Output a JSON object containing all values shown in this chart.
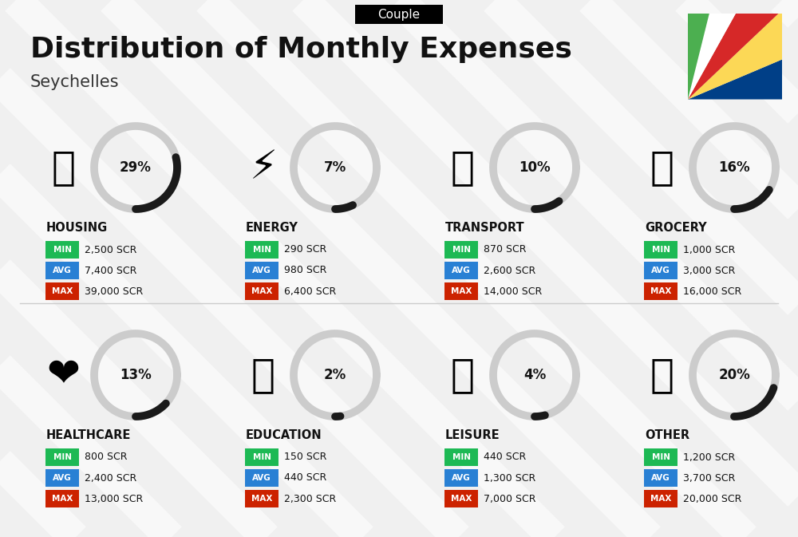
{
  "title": "Distribution of Monthly Expenses",
  "subtitle": "Seychelles",
  "label_couple": "Couple",
  "bg_color": "#f0f0f0",
  "categories": [
    {
      "name": "HOUSING",
      "pct": 29,
      "min": "2,500 SCR",
      "avg": "7,400 SCR",
      "max": "39,000 SCR",
      "row": 0,
      "col": 0
    },
    {
      "name": "ENERGY",
      "pct": 7,
      "min": "290 SCR",
      "avg": "980 SCR",
      "max": "6,400 SCR",
      "row": 0,
      "col": 1
    },
    {
      "name": "TRANSPORT",
      "pct": 10,
      "min": "870 SCR",
      "avg": "2,600 SCR",
      "max": "14,000 SCR",
      "row": 0,
      "col": 2
    },
    {
      "name": "GROCERY",
      "pct": 16,
      "min": "1,000 SCR",
      "avg": "3,000 SCR",
      "max": "16,000 SCR",
      "row": 0,
      "col": 3
    },
    {
      "name": "HEALTHCARE",
      "pct": 13,
      "min": "800 SCR",
      "avg": "2,400 SCR",
      "max": "13,000 SCR",
      "row": 1,
      "col": 0
    },
    {
      "name": "EDUCATION",
      "pct": 2,
      "min": "150 SCR",
      "avg": "440 SCR",
      "max": "2,300 SCR",
      "row": 1,
      "col": 1
    },
    {
      "name": "LEISURE",
      "pct": 4,
      "min": "440 SCR",
      "avg": "1,300 SCR",
      "max": "7,000 SCR",
      "row": 1,
      "col": 2
    },
    {
      "name": "OTHER",
      "pct": 20,
      "min": "1,200 SCR",
      "avg": "3,700 SCR",
      "max": "20,000 SCR",
      "row": 1,
      "col": 3
    }
  ],
  "color_min": "#1db954",
  "color_avg": "#2980d4",
  "color_max": "#cc2200",
  "color_arc_filled": "#1a1a1a",
  "color_arc_empty": "#cccccc",
  "flag_colors": [
    "#003F87",
    "#FCD856",
    "#D62828",
    "#FFFFFF",
    "#4CAF50"
  ],
  "label_min": "MIN",
  "label_avg": "AVG",
  "label_max": "MAX",
  "stripe_color": "#e8e8e8",
  "separator_color": "#cccccc"
}
